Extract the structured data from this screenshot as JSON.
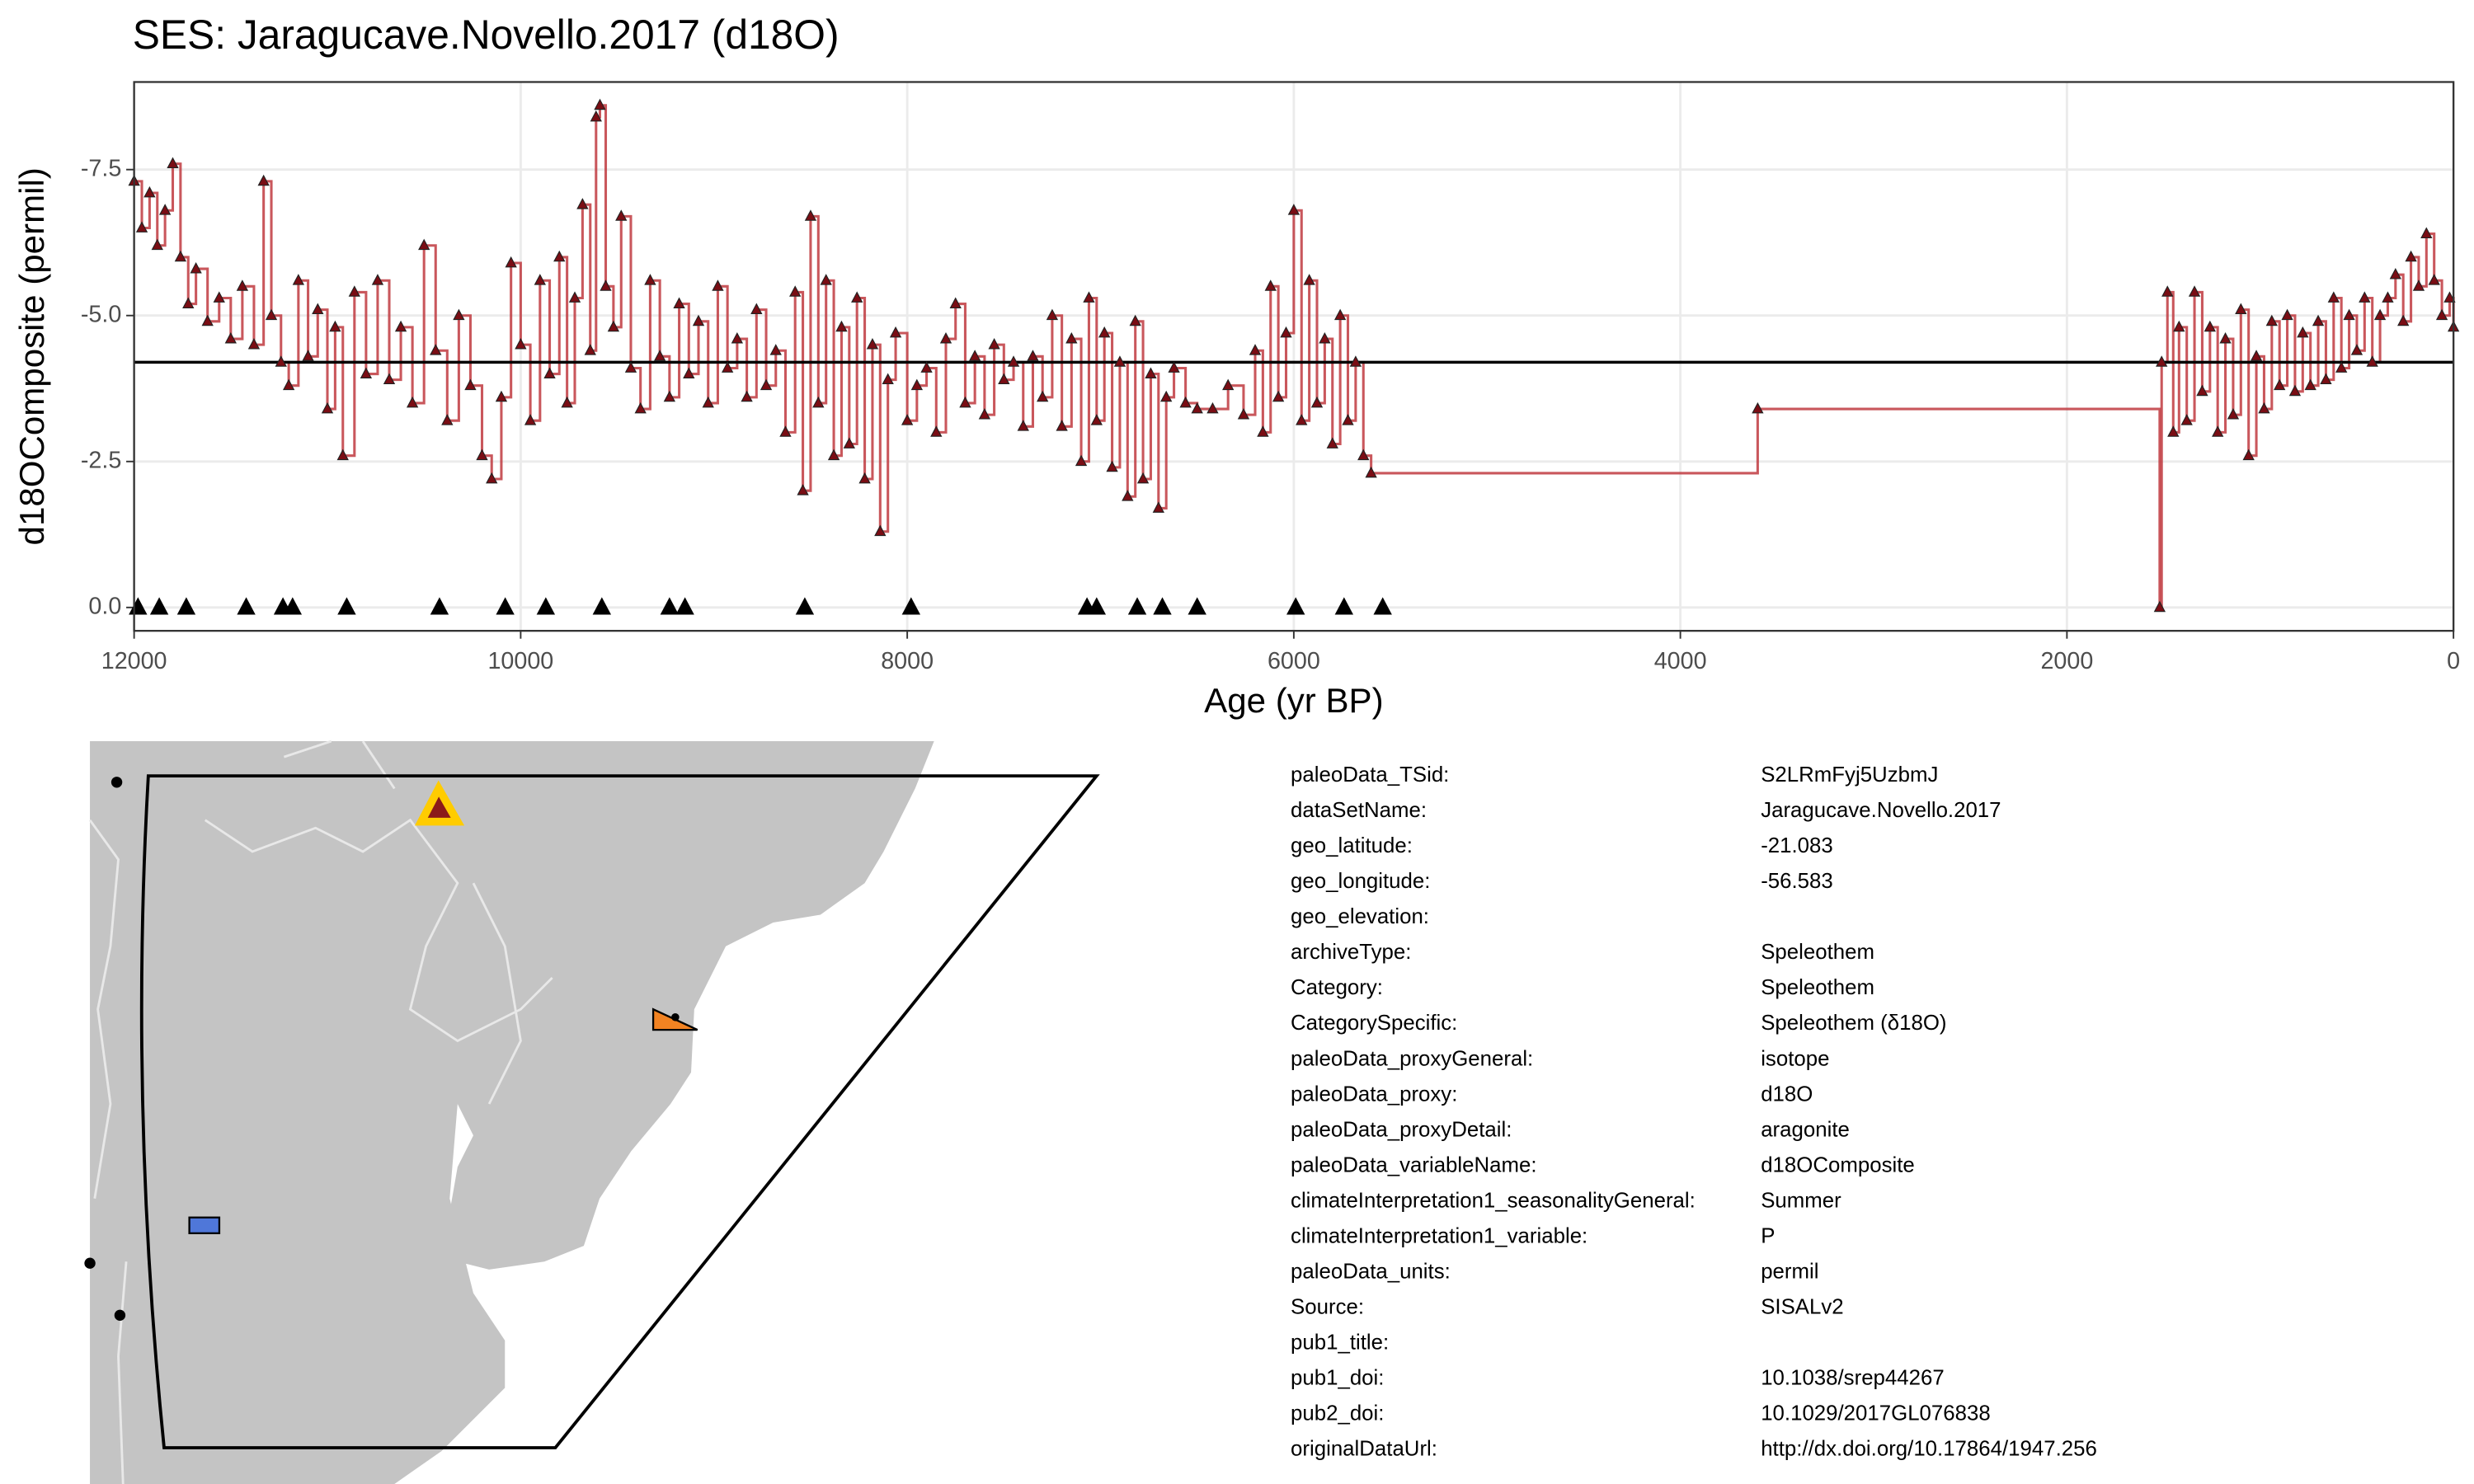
{
  "chart_data": {
    "type": "step",
    "title": "SES: Jaragucave.Novello.2017 (d18O)",
    "x_label": "Age (yr BP)",
    "y_label": "d18OComposite (permil)",
    "xlim": [
      0,
      12000
    ],
    "x_reversed": true,
    "xticks": [
      0,
      2000,
      4000,
      6000,
      8000,
      10000,
      12000
    ],
    "ylim": [
      -9.0,
      0.4
    ],
    "y_reversed": true,
    "yticks": [
      {
        "value": -7.5,
        "label": "-7.5"
      },
      {
        "value": -5.0,
        "label": "-5.0"
      },
      -2.5,
      {
        "value": 0,
        "label": "0.0"
      }
    ],
    "grid": true,
    "hline": -4.2,
    "series": [
      {
        "color": "#c0393f",
        "marker_color": "#7a0d14",
        "x": [
          12000,
          11960,
          11920,
          11880,
          11840,
          11800,
          11760,
          11720,
          11680,
          11620,
          11560,
          11500,
          11440,
          11380,
          11330,
          11290,
          11240,
          11200,
          11150,
          11100,
          11050,
          11000,
          10960,
          10920,
          10860,
          10800,
          10740,
          10680,
          10620,
          10560,
          10500,
          10440,
          10380,
          10320,
          10260,
          10200,
          10150,
          10100,
          10050,
          10000,
          9950,
          9900,
          9850,
          9800,
          9760,
          9720,
          9680,
          9640,
          9610,
          9590,
          9560,
          9520,
          9480,
          9430,
          9380,
          9330,
          9280,
          9230,
          9180,
          9130,
          9080,
          9030,
          8980,
          8930,
          8880,
          8830,
          8780,
          8730,
          8680,
          8630,
          8580,
          8540,
          8500,
          8460,
          8420,
          8380,
          8340,
          8300,
          8260,
          8220,
          8180,
          8140,
          8100,
          8060,
          8000,
          7950,
          7900,
          7850,
          7800,
          7750,
          7700,
          7650,
          7600,
          7550,
          7500,
          7450,
          7400,
          7350,
          7300,
          7250,
          7200,
          7150,
          7100,
          7060,
          7020,
          6980,
          6940,
          6900,
          6860,
          6820,
          6780,
          6740,
          6700,
          6660,
          6620,
          6560,
          6500,
          6420,
          6340,
          6260,
          6200,
          6160,
          6120,
          6080,
          6040,
          6000,
          5960,
          5920,
          5880,
          5840,
          5800,
          5760,
          5720,
          5680,
          5640,
          5600,
          3600,
          1520,
          1510,
          1480,
          1450,
          1420,
          1380,
          1340,
          1300,
          1260,
          1220,
          1180,
          1140,
          1100,
          1060,
          1020,
          980,
          940,
          900,
          860,
          820,
          780,
          740,
          700,
          660,
          620,
          580,
          540,
          500,
          460,
          420,
          380,
          340,
          300,
          260,
          220,
          180,
          140,
          100,
          60,
          20,
          0
        ],
        "values": [
          -7.3,
          -6.5,
          -7.1,
          -6.2,
          -6.8,
          -7.6,
          -6.0,
          -5.2,
          -5.8,
          -4.9,
          -5.3,
          -4.6,
          -5.5,
          -4.5,
          -7.3,
          -5.0,
          -4.2,
          -3.8,
          -5.6,
          -4.3,
          -5.1,
          -3.4,
          -4.8,
          -2.6,
          -5.4,
          -4.0,
          -5.6,
          -3.9,
          -4.8,
          -3.5,
          -6.2,
          -4.4,
          -3.2,
          -5.0,
          -3.8,
          -2.6,
          -2.2,
          -3.6,
          -5.9,
          -4.5,
          -3.2,
          -5.6,
          -4.0,
          -6.0,
          -3.5,
          -5.3,
          -6.9,
          -4.4,
          -8.4,
          -8.6,
          -5.5,
          -4.8,
          -6.7,
          -4.1,
          -3.4,
          -5.6,
          -4.3,
          -3.6,
          -5.2,
          -4.0,
          -4.9,
          -3.5,
          -5.5,
          -4.1,
          -4.6,
          -3.6,
          -5.1,
          -3.8,
          -4.4,
          -3.0,
          -5.4,
          -2.0,
          -6.7,
          -3.5,
          -5.6,
          -2.6,
          -4.8,
          -2.8,
          -5.3,
          -2.2,
          -4.5,
          -1.3,
          -3.9,
          -4.7,
          -3.2,
          -3.8,
          -4.1,
          -3.0,
          -4.6,
          -5.2,
          -3.5,
          -4.3,
          -3.3,
          -4.5,
          -3.9,
          -4.2,
          -3.1,
          -4.3,
          -3.6,
          -5.0,
          -3.1,
          -4.6,
          -2.5,
          -5.3,
          -3.2,
          -4.7,
          -2.4,
          -4.2,
          -1.9,
          -4.9,
          -2.2,
          -4.0,
          -1.7,
          -3.6,
          -4.1,
          -3.5,
          -3.4,
          -3.4,
          -3.8,
          -3.3,
          -4.4,
          -3.0,
          -5.5,
          -3.6,
          -4.7,
          -6.8,
          -3.2,
          -5.6,
          -3.5,
          -4.6,
          -2.8,
          -5.0,
          -3.2,
          -4.2,
          -2.6,
          -2.3,
          -3.4,
          0,
          -4.2,
          -5.4,
          -3.0,
          -4.8,
          -3.2,
          -5.4,
          -3.7,
          -4.8,
          -3.0,
          -4.6,
          -3.3,
          -5.1,
          -2.6,
          -4.3,
          -3.4,
          -4.9,
          -3.8,
          -5.0,
          -3.7,
          -4.7,
          -3.8,
          -4.9,
          -3.9,
          -5.3,
          -4.1,
          -5.0,
          -4.4,
          -5.3,
          -4.2,
          -5.0,
          -5.3,
          -5.7,
          -4.9,
          -6.0,
          -5.5,
          -6.4,
          -5.6,
          -5.0,
          -5.3,
          -4.8
        ]
      },
      {
        "color": "#000000",
        "x": [
          11980,
          11870,
          11730,
          11420,
          11230,
          11180,
          10900,
          10420,
          10080,
          9870,
          9580,
          9230,
          9150,
          8530,
          7980,
          7070,
          7020,
          6810,
          6680,
          6500,
          5990,
          5740,
          5540
        ],
        "values": [
          0,
          0,
          0,
          0,
          0,
          0,
          0,
          0,
          0,
          0,
          0,
          0,
          0,
          0,
          0,
          0,
          0,
          0,
          0,
          0,
          0,
          0,
          0
        ]
      }
    ]
  },
  "metadata": {
    "rows": [
      [
        "paleoData_TSid:",
        "S2LRmFyj5UzbmJ"
      ],
      [
        "dataSetName:",
        "Jaragucave.Novello.2017"
      ],
      [
        "geo_latitude:",
        "-21.083"
      ],
      [
        "geo_longitude:",
        "-56.583"
      ],
      [
        "geo_elevation:"
      ],
      [
        "archiveType:",
        "Speleothem"
      ],
      [
        "Category:",
        "Speleothem"
      ],
      [
        "CategorySpecific:",
        "Speleothem (δ18O)"
      ],
      [
        "paleoData_proxyGeneral:",
        "isotope"
      ],
      [
        "paleoData_proxy:",
        "d18O"
      ],
      [
        "paleoData_proxyDetail:",
        "aragonite"
      ],
      [
        "paleoData_variableName:",
        "d18OComposite"
      ],
      [
        "climateInterpretation1_seasonalityGeneral:",
        "Summer"
      ],
      [
        "climateInterpretation1_variable:",
        "P"
      ],
      [
        "paleoData_units:",
        "permil"
      ],
      [
        "Source:",
        "SISALv2"
      ],
      [
        "pub1_title:"
      ],
      [
        "pub1_doi:",
        "10.1038/srep44267"
      ],
      [
        "pub2_doi:",
        "10.1029/2017GL076838"
      ],
      [
        "originalDataUrl:",
        "http://dx.doi.org/10.17864/1947.256"
      ]
    ]
  }
}
